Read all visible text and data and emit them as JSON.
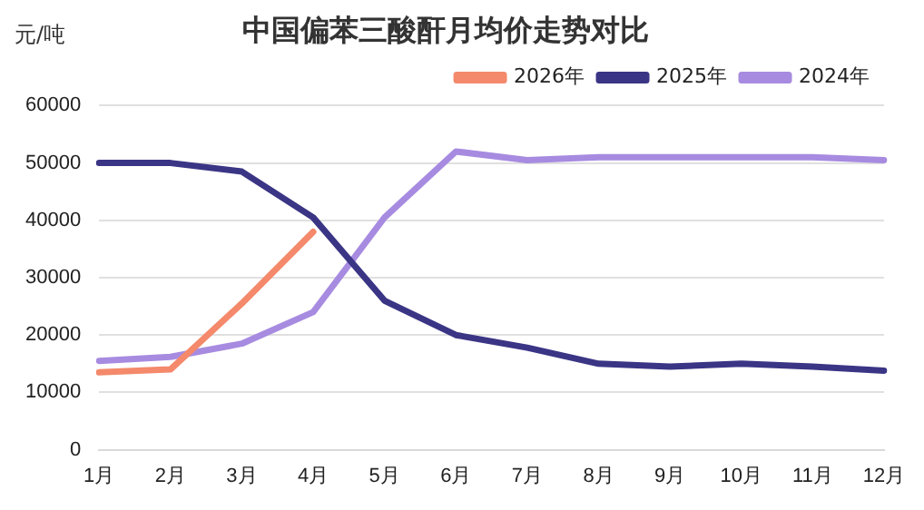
{
  "chart_data": {
    "type": "line",
    "title": "中国偏苯三酸酐月均价走势对比",
    "ylabel": "元/吨",
    "categories": [
      "1月",
      "2月",
      "3月",
      "4月",
      "5月",
      "6月",
      "7月",
      "8月",
      "9月",
      "10月",
      "11月",
      "12月"
    ],
    "series": [
      {
        "name": "2026年",
        "color": "#f4896b",
        "values": [
          13500,
          14000,
          25500,
          38000,
          null,
          null,
          null,
          null,
          null,
          null,
          null,
          null
        ]
      },
      {
        "name": "2025年",
        "color": "#3b3585",
        "values": [
          50000,
          50000,
          48500,
          40500,
          26000,
          20000,
          17800,
          15000,
          14500,
          15000,
          14500,
          13800
        ]
      },
      {
        "name": "2024年",
        "color": "#a78be0",
        "values": [
          15500,
          16200,
          18500,
          24000,
          40500,
          52000,
          50500,
          51000,
          51000,
          51000,
          51000,
          50500
        ]
      }
    ],
    "ylim": [
      0,
      60000
    ],
    "yticks": [
      0,
      10000,
      20000,
      30000,
      40000,
      50000,
      60000
    ],
    "grid": "y",
    "legend": "top right",
    "marker": "none",
    "line_style": "solid"
  }
}
